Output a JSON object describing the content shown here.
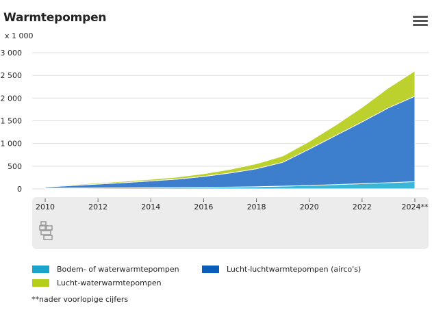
{
  "title": "Warmtepompen",
  "unit_label": "x 1 000",
  "footnote": "**nader voorlopige cijfers",
  "colors": {
    "bodem": "#3ab7d8",
    "lucht_lucht": "#3d7fcd",
    "lucht_water": "#bcd12e",
    "panel": "#ececec",
    "grid": "#dddddd"
  },
  "chart_data": {
    "type": "area",
    "stacked": true,
    "title": "Warmtepompen",
    "ylabel": "x 1 000",
    "xlabel": "",
    "x": [
      2010,
      2011,
      2012,
      2013,
      2014,
      2015,
      2016,
      2017,
      2018,
      2019,
      2020,
      2021,
      2022,
      2023,
      2024
    ],
    "xticks": [
      "2010",
      "2012",
      "2014",
      "2016",
      "2018",
      "2020",
      "2022",
      "2024**"
    ],
    "xtick_values": [
      2010,
      2012,
      2014,
      2016,
      2018,
      2020,
      2022,
      2024
    ],
    "yticks": [
      "0",
      "500",
      "1 000",
      "1 500",
      "2 000",
      "2 500",
      "3 000"
    ],
    "ytick_values": [
      0,
      500,
      1000,
      1500,
      2000,
      2500,
      3000
    ],
    "ylim": [
      0,
      3000
    ],
    "xlim": [
      2010,
      2024
    ],
    "series": [
      {
        "name": "Bodem- of waterwarmtepompen",
        "key": "bodem",
        "values": [
          15,
          18,
          20,
          23,
          26,
          30,
          34,
          40,
          48,
          60,
          75,
          95,
          115,
          135,
          160
        ]
      },
      {
        "name": "Lucht-luchtwarmtepompen (airco's)",
        "key": "lucht_lucht",
        "values": [
          25,
          55,
          85,
          115,
          150,
          185,
          240,
          310,
          395,
          525,
          800,
          1080,
          1360,
          1650,
          1880
        ]
      },
      {
        "name": "Lucht-waterwarmtepompen",
        "key": "lucht_water",
        "values": [
          15,
          20,
          25,
          30,
          35,
          45,
          60,
          80,
          110,
          140,
          170,
          230,
          320,
          440,
          560
        ]
      }
    ]
  },
  "legend": [
    {
      "label": "Bodem- of waterwarmtepompen",
      "key": "bodem"
    },
    {
      "label": "Lucht-luchtwarmtepompen (airco's)",
      "key": "lucht_lucht"
    },
    {
      "label": "Lucht-waterwarmtepompen",
      "key": "lucht_water"
    }
  ]
}
